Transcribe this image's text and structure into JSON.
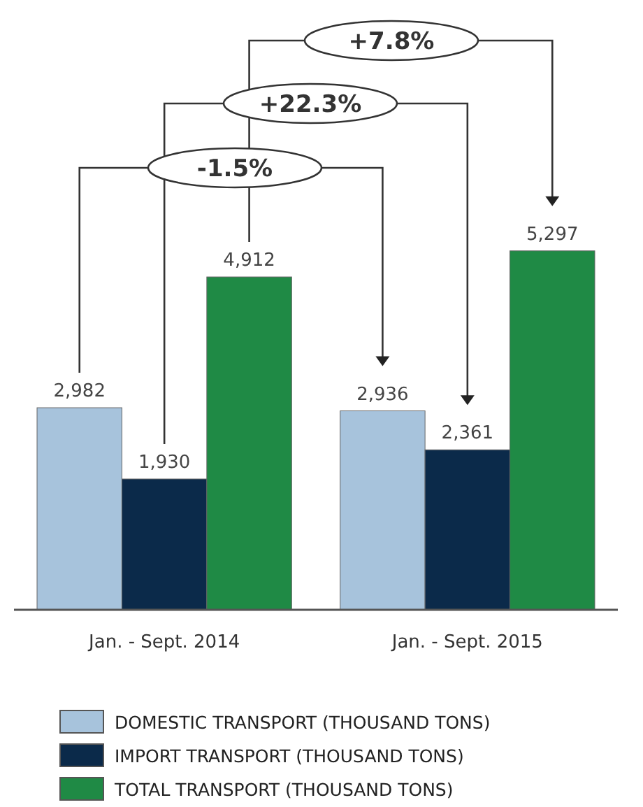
{
  "chart_data": {
    "type": "bar",
    "categories": [
      "Jan. - Sept. 2014",
      "Jan. - Sept. 2015"
    ],
    "series": [
      {
        "name": "DOMESTIC TRANSPORT (THOUSAND TONS)",
        "color": "#a7c3dc",
        "values": [
          2982,
          2936
        ],
        "value_labels": [
          "2,982",
          "2,936"
        ]
      },
      {
        "name": "IMPORT TRANSPORT (THOUSAND TONS)",
        "color": "#0b2a4a",
        "values": [
          1930,
          2361
        ],
        "value_labels": [
          "1,930",
          "2,361"
        ]
      },
      {
        "name": "TOTAL TRANSPORT (THOUSAND TONS)",
        "color": "#1f8a45",
        "values": [
          4912,
          5297
        ],
        "value_labels": [
          "4,912",
          "5,297"
        ]
      }
    ],
    "annotations": [
      "+7.8%",
      "+22.3%",
      "-1.5%"
    ],
    "legend": "bottom"
  }
}
